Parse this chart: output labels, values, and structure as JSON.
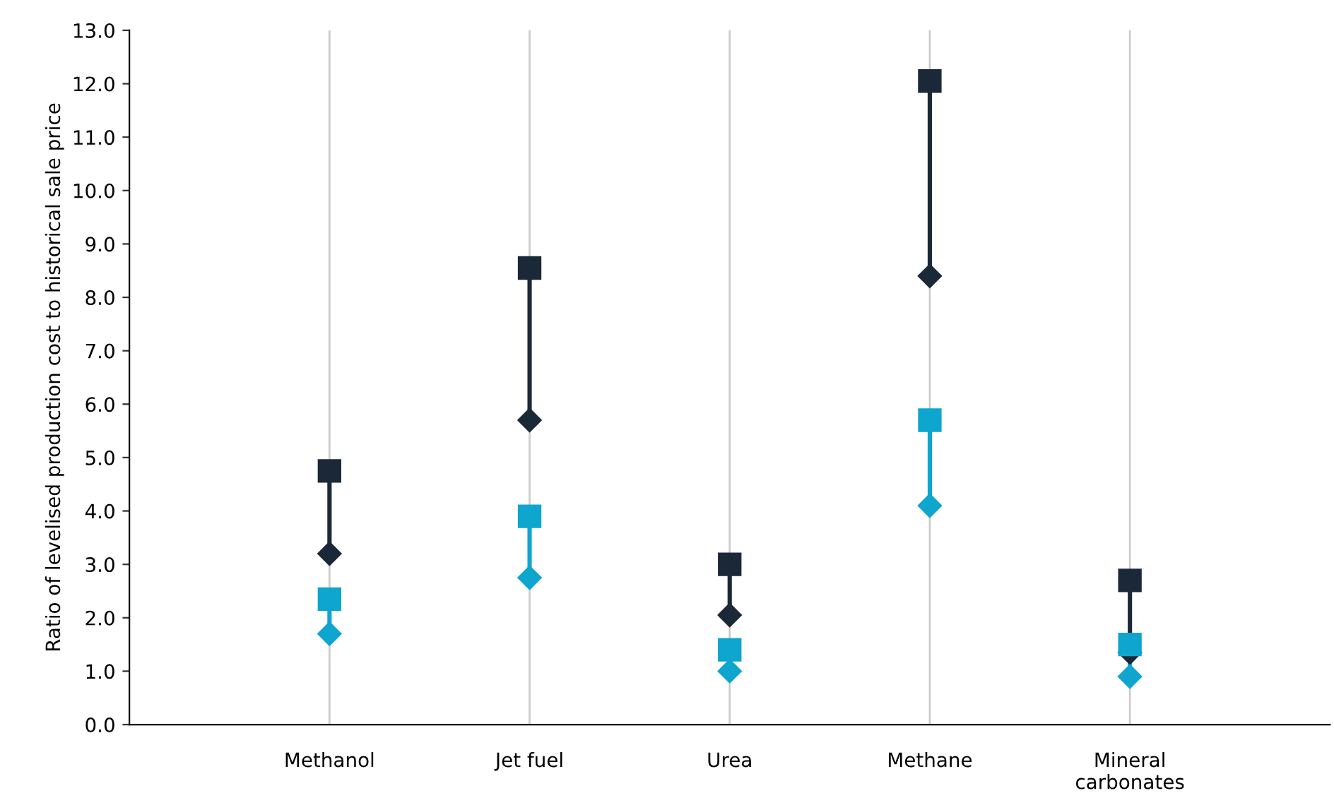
{
  "chart_data": {
    "type": "scatter",
    "ylabel": "Ratio of levelised production cost to historical sale price",
    "categories": [
      "Methanol",
      "Jet fuel",
      "Urea",
      "Methane",
      "Mineral\ncarbonates"
    ],
    "series": [
      {
        "color": "#1b2838",
        "marker": "square",
        "values": [
          4.75,
          8.55,
          3.0,
          12.05,
          2.7
        ]
      },
      {
        "color": "#1b2838",
        "marker": "diamond",
        "values": [
          3.2,
          5.7,
          2.05,
          8.4,
          1.35
        ]
      },
      {
        "color": "#0ea5cf",
        "marker": "square",
        "values": [
          2.35,
          3.9,
          1.4,
          5.7,
          1.5
        ]
      },
      {
        "color": "#0ea5cf",
        "marker": "diamond",
        "values": [
          1.7,
          2.75,
          1.0,
          4.1,
          0.9
        ]
      }
    ],
    "ylim": [
      0,
      13
    ],
    "yticks": [
      {
        "value": 0,
        "label": "0.0"
      },
      {
        "value": 1,
        "label": "1.0"
      },
      {
        "value": 2,
        "label": "2.0"
      },
      {
        "value": 3,
        "label": "3.0"
      },
      {
        "value": 4,
        "label": "4.0"
      },
      {
        "value": 5,
        "label": "5.0"
      },
      {
        "value": 6,
        "label": "6.0"
      },
      {
        "value": 7,
        "label": "7.0"
      },
      {
        "value": 8,
        "label": "8.0"
      },
      {
        "value": 9,
        "label": "9.0"
      },
      {
        "value": 10,
        "label": "10.0"
      },
      {
        "value": 11,
        "label": "11.0"
      },
      {
        "value": 12,
        "label": "12.0"
      },
      {
        "value": 13,
        "label": "13.0"
      }
    ],
    "grid": "x",
    "legend": false
  }
}
